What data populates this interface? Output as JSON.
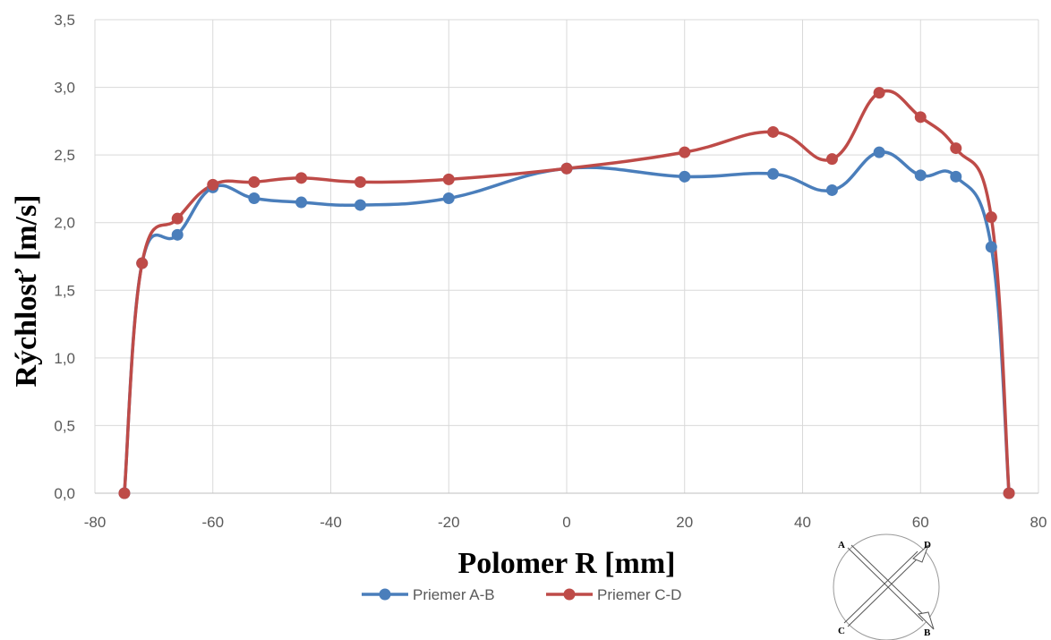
{
  "chart_data": {
    "type": "line",
    "xlabel": "Polomer R [mm]",
    "ylabel": "Rýchlosť [m/s]",
    "xlim": [
      -80,
      80
    ],
    "ylim": [
      0,
      3.5
    ],
    "x_ticks": [
      "-80",
      "-60",
      "-40",
      "-20",
      "0",
      "20",
      "40",
      "60",
      "80"
    ],
    "x_tick_values": [
      -80,
      -60,
      -40,
      -20,
      0,
      20,
      40,
      60,
      80
    ],
    "y_ticks": [
      "0,0",
      "0,5",
      "1,0",
      "1,5",
      "2,0",
      "2,5",
      "3,0",
      "3,5"
    ],
    "y_tick_values": [
      0,
      0.5,
      1.0,
      1.5,
      2.0,
      2.5,
      3.0,
      3.5
    ],
    "grid": true,
    "legend_position": "bottom-center",
    "series": [
      {
        "name": "Priemer A-B",
        "color": "#4a7ebb",
        "x": [
          -75,
          -72,
          -66,
          -60,
          -53,
          -45,
          -35,
          -20,
          0,
          20,
          35,
          45,
          53,
          60,
          66,
          72,
          75
        ],
        "y": [
          0.0,
          1.7,
          1.91,
          2.26,
          2.18,
          2.15,
          2.13,
          2.18,
          2.4,
          2.34,
          2.36,
          2.24,
          2.52,
          2.35,
          2.34,
          1.82,
          0.0
        ]
      },
      {
        "name": "Priemer C-D",
        "color": "#be4b48",
        "x": [
          -75,
          -72,
          -66,
          -60,
          -53,
          -45,
          -35,
          -20,
          0,
          20,
          35,
          45,
          53,
          60,
          66,
          72,
          75
        ],
        "y": [
          0.0,
          1.7,
          2.03,
          2.28,
          2.3,
          2.33,
          2.3,
          2.32,
          2.4,
          2.52,
          2.67,
          2.47,
          2.96,
          2.78,
          2.55,
          2.04,
          0.0
        ]
      }
    ]
  },
  "diagram": {
    "labels": {
      "a": "A",
      "b": "B",
      "c": "C",
      "d": "D"
    }
  }
}
